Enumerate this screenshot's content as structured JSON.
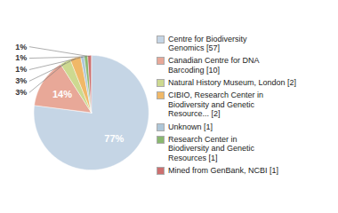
{
  "chart_data": {
    "type": "pie",
    "categories": [
      "Centre for Biodiversity\nGenomics [57]",
      "Canadian Centre for DNA\nBarcoding [10]",
      "Natural History Museum, London [2]",
      "CIBIO, Research Center in\nBiodiversity and Genetic\nResource... [2]",
      "Unknown [1]",
      "Research Center in\nBiodiversity and Genetic\nResources [1]",
      "Mined from GenBank, NCBI [1]"
    ],
    "values": [
      77,
      14,
      3,
      3,
      1,
      1,
      1
    ],
    "value_labels": [
      "77%",
      "14%",
      "3%",
      "3%",
      "1%",
      "1%",
      "1%"
    ],
    "colors": [
      "#c5d5e5",
      "#e8a898",
      "#cdd990",
      "#f0b868",
      "#aec6d8",
      "#8ab870",
      "#cd6f6f"
    ],
    "data_labels": true,
    "legend": "right"
  }
}
